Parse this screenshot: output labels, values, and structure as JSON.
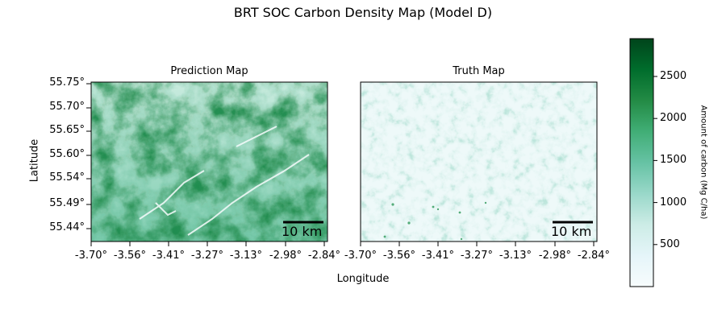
{
  "title": "BRT SOC Carbon Density Map (Model D)",
  "panels": [
    {
      "id": "prediction",
      "subtitle": "Prediction Map"
    },
    {
      "id": "truth",
      "subtitle": "Truth Map"
    }
  ],
  "axes": {
    "xlabel": "Longitude",
    "ylabel": "Latitude",
    "xticks": [
      "-3.70°",
      "-3.56°",
      "-3.41°",
      "-3.27°",
      "-3.13°",
      "-2.98°",
      "-2.84°"
    ],
    "yticks": [
      "55.75°",
      "55.70°",
      "55.65°",
      "55.60°",
      "55.54°",
      "55.49°",
      "55.44°"
    ]
  },
  "scalebar": {
    "label": "10 km"
  },
  "colorbar": {
    "label": "Amount of carbon (Mg C/ha)",
    "ticks": [
      "500",
      "1000",
      "1500",
      "2000",
      "2500"
    ],
    "tick_values": [
      500,
      1000,
      1500,
      2000,
      2500
    ],
    "range": [
      0,
      2950
    ],
    "colors": [
      "#f7fcfd",
      "#e5f5f9",
      "#ccece6",
      "#99d8c9",
      "#66c2a4",
      "#41ae76",
      "#238b45",
      "#006d2c",
      "#00441b"
    ]
  }
}
